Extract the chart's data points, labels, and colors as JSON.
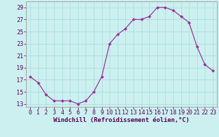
{
  "x": [
    0,
    1,
    2,
    3,
    4,
    5,
    6,
    7,
    8,
    9,
    10,
    11,
    12,
    13,
    14,
    15,
    16,
    17,
    18,
    19,
    20,
    21,
    22,
    23
  ],
  "y": [
    17.5,
    16.5,
    14.5,
    13.5,
    13.5,
    13.5,
    13.0,
    13.5,
    15.0,
    17.5,
    23.0,
    24.5,
    25.5,
    27.0,
    27.0,
    27.5,
    29.0,
    29.0,
    28.5,
    27.5,
    26.5,
    22.5,
    19.5,
    18.5
  ],
  "xlim": [
    -0.5,
    23.5
  ],
  "ylim": [
    12.5,
    30.0
  ],
  "yticks": [
    13,
    15,
    17,
    19,
    21,
    23,
    25,
    27,
    29
  ],
  "xticks": [
    0,
    1,
    2,
    3,
    4,
    5,
    6,
    7,
    8,
    9,
    10,
    11,
    12,
    13,
    14,
    15,
    16,
    17,
    18,
    19,
    20,
    21,
    22,
    23
  ],
  "xlabel": "Windchill (Refroidissement éolien,°C)",
  "line_color": "#993399",
  "marker": "D",
  "marker_size": 2.0,
  "bg_color": "#ccf0f0",
  "grid_color": "#aadddd",
  "spine_color": "#aaaaaa",
  "xlabel_fontsize": 6.5,
  "tick_fontsize": 6.0
}
